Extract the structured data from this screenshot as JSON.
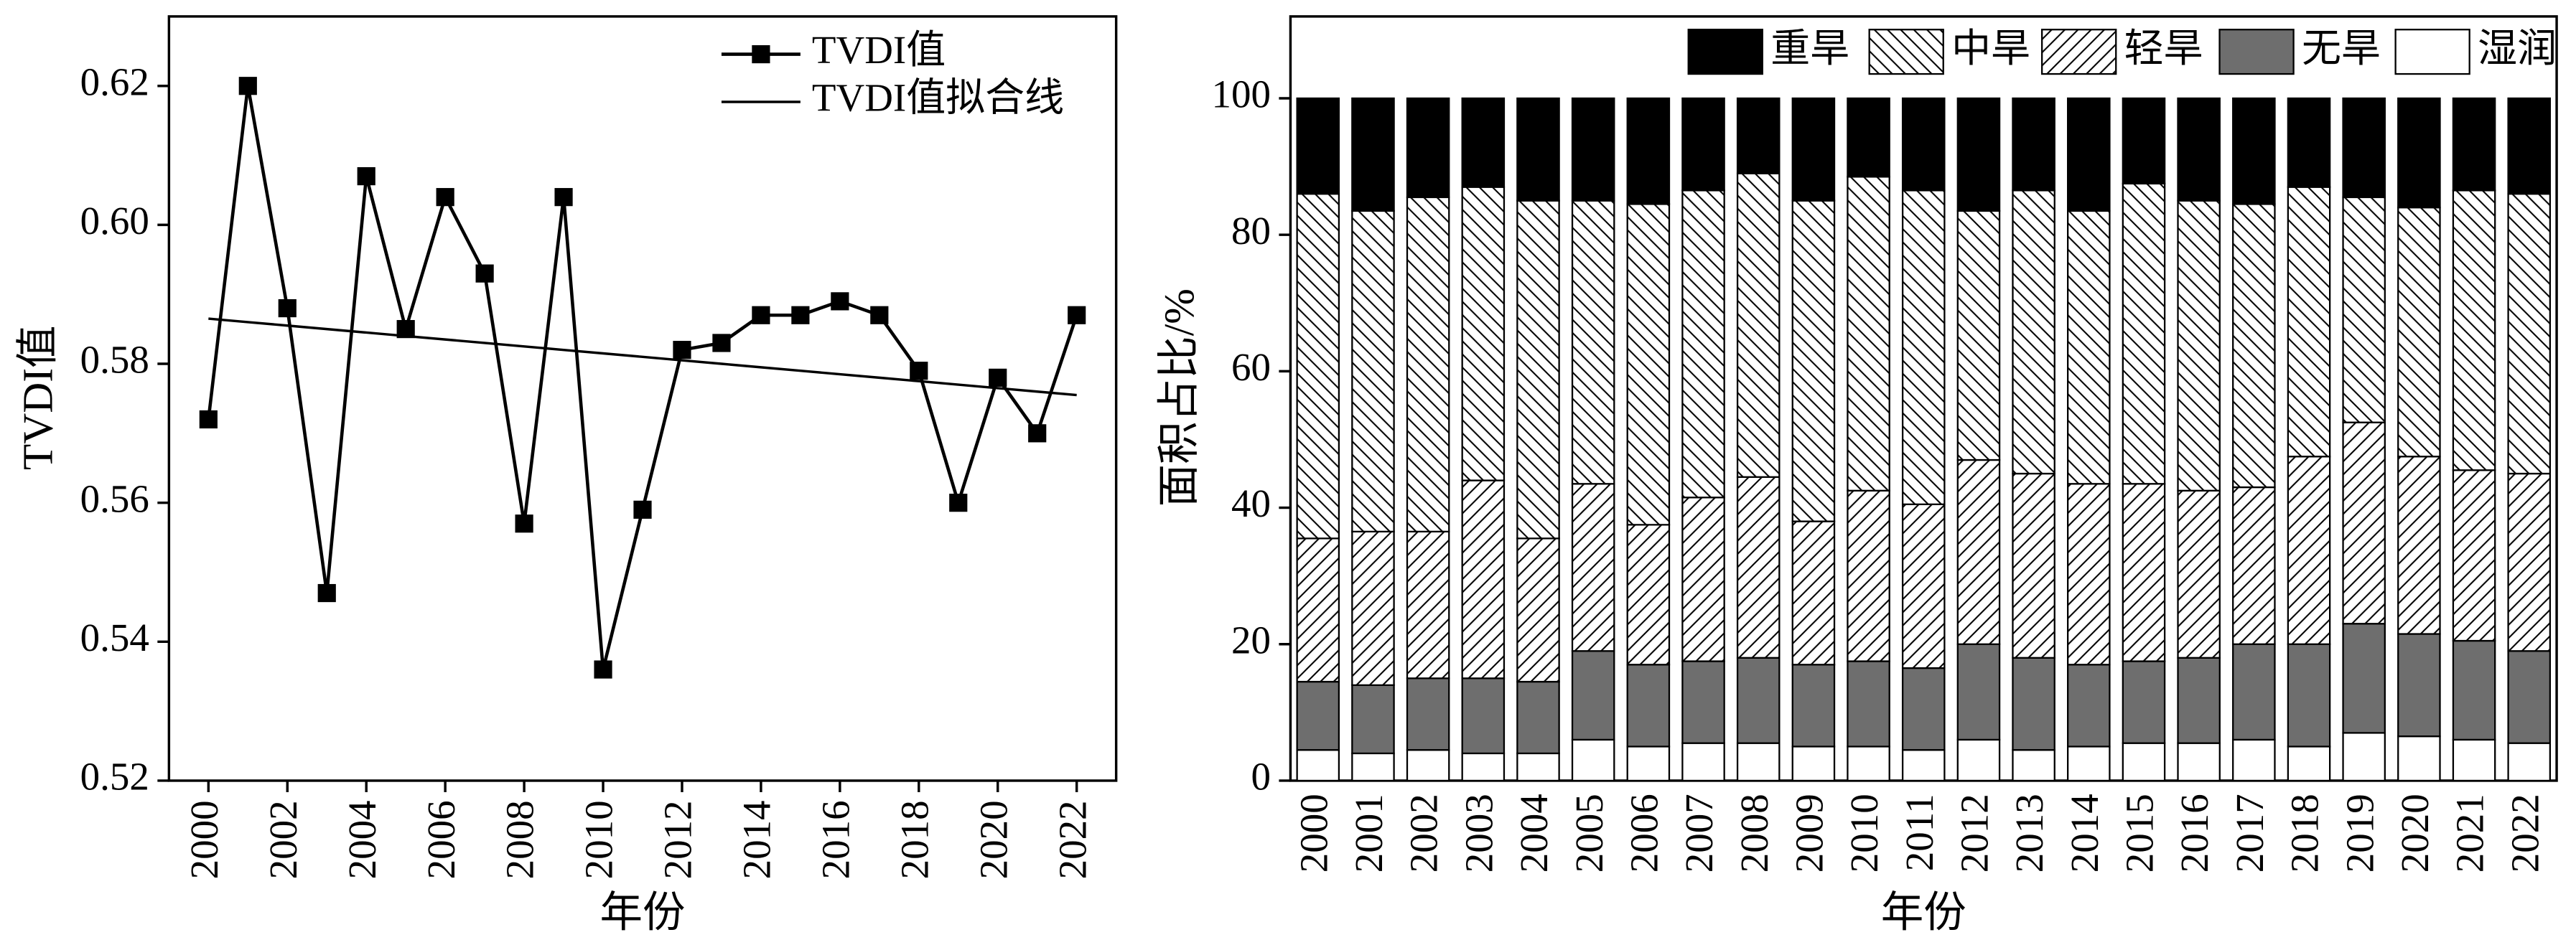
{
  "chart_data": [
    {
      "type": "line",
      "ylabel": "TVDI值",
      "xlabel": "年份",
      "x": [
        2000,
        2001,
        2002,
        2003,
        2004,
        2005,
        2006,
        2007,
        2008,
        2009,
        2010,
        2011,
        2012,
        2013,
        2014,
        2015,
        2016,
        2017,
        2018,
        2019,
        2020,
        2021,
        2022
      ],
      "series": [
        {
          "name": "TVDI值",
          "color": "#000000",
          "marker": "square",
          "values": [
            0.572,
            0.62,
            0.588,
            0.547,
            0.607,
            0.585,
            0.604,
            0.593,
            0.557,
            0.604,
            0.536,
            0.559,
            0.582,
            0.583,
            0.587,
            0.587,
            0.589,
            0.587,
            0.579,
            0.56,
            0.578,
            0.57,
            0.587
          ]
        },
        {
          "name": "TVDI值拟合线",
          "color": "#000000",
          "marker": "none",
          "values": [
            0.5865,
            0.586,
            0.5855,
            0.585,
            0.5845,
            0.584,
            0.5835,
            0.583,
            0.5825,
            0.582,
            0.5815,
            0.581,
            0.5805,
            0.58,
            0.5795,
            0.579,
            0.5785,
            0.578,
            0.5775,
            0.577,
            0.5765,
            0.576,
            0.5755
          ]
        }
      ],
      "xlim": [
        1999,
        2023
      ],
      "xticks": [
        2000,
        2002,
        2004,
        2006,
        2008,
        2010,
        2012,
        2014,
        2016,
        2018,
        2020,
        2022
      ],
      "ylim": [
        0.52,
        0.63
      ],
      "yticks": [
        0.52,
        0.54,
        0.56,
        0.58,
        {
          "value": 0.6,
          "label": "0.60"
        },
        0.62
      ],
      "grid": false,
      "legend": "upper right"
    },
    {
      "type": "stacked_bar",
      "ylabel": "面积占比/%",
      "xlabel": "年份",
      "categories": [
        "2000",
        "2001",
        "2002",
        "2003",
        "2004",
        "2005",
        "2006",
        "2007",
        "2008",
        "2009",
        "2010",
        "2011",
        "2012",
        "2013",
        "2014",
        "2015",
        "2016",
        "2017",
        "2018",
        "2019",
        "2020",
        "2021",
        "2022"
      ],
      "series": [
        {
          "name": "重旱",
          "color": "#000000",
          "pattern": "solid",
          "values": [
            14,
            16.5,
            14.5,
            13,
            15,
            15,
            15.5,
            13.5,
            11,
            15,
            11.5,
            13.5,
            16.5,
            13.5,
            16.5,
            12.5,
            15,
            15.5,
            13,
            14.5,
            16,
            13.5,
            14
          ]
        },
        {
          "name": "中旱",
          "color": "#000000",
          "pattern": "backslash",
          "values": [
            50.5,
            47,
            49,
            43,
            49.5,
            41.5,
            47,
            45,
            44.5,
            47,
            46,
            46,
            36.5,
            41.5,
            40,
            44,
            42.5,
            41.5,
            39.5,
            33,
            36.5,
            41,
            41
          ]
        },
        {
          "name": "轻旱",
          "color": "#000000",
          "pattern": "slash",
          "values": [
            21,
            22.5,
            21.5,
            29,
            21,
            24.5,
            20.5,
            24,
            26.5,
            21,
            25,
            24,
            27,
            27,
            26.5,
            26,
            24.5,
            23,
            27.5,
            29.5,
            26,
            25,
            26
          ]
        },
        {
          "name": "无旱",
          "color": "#6e6e6e",
          "pattern": "solid",
          "values": [
            10,
            10,
            10.5,
            11,
            10.5,
            13,
            12,
            12,
            12.5,
            12,
            12.5,
            12,
            14,
            13.5,
            12,
            12,
            12.5,
            14,
            15,
            16,
            15,
            14.5,
            13.5
          ]
        },
        {
          "name": "湿润",
          "color": "#ffffff",
          "pattern": "solid",
          "values": [
            4.5,
            4,
            4.5,
            4,
            4,
            6,
            5,
            5.5,
            5.5,
            5,
            5,
            4.5,
            6,
            4.5,
            5,
            5.5,
            5.5,
            6,
            5,
            7,
            6.5,
            6,
            5.5
          ]
        }
      ],
      "ylim": [
        0,
        112
      ],
      "yticks": [
        0,
        20,
        40,
        60,
        80,
        100
      ],
      "grid": false,
      "legend": "top"
    }
  ]
}
